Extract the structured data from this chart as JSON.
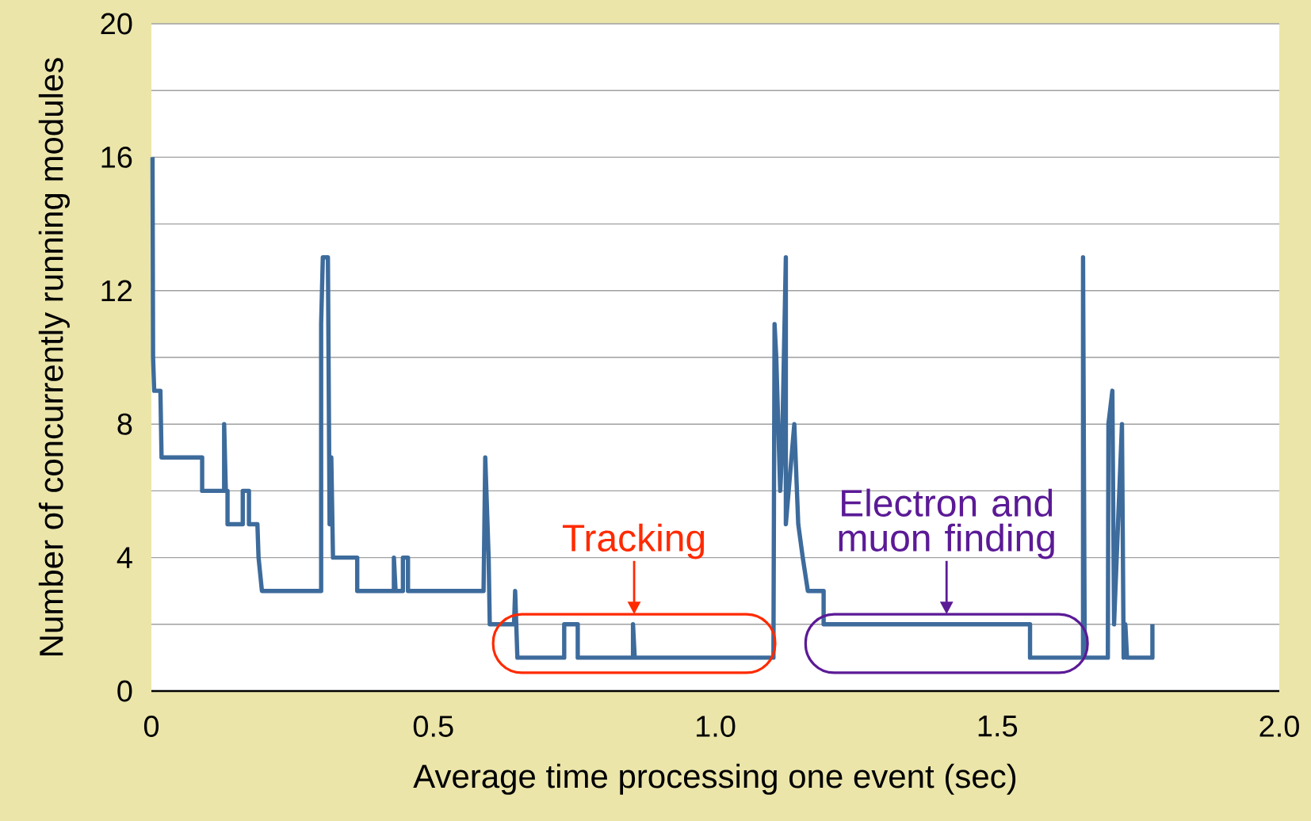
{
  "chart_data": {
    "type": "line",
    "xlabel": "Average time processing one event (sec)",
    "ylabel": "Number of concurrently running modules",
    "xlim": [
      0,
      2
    ],
    "ylim": [
      0,
      20
    ],
    "xticks": [
      0,
      0.5,
      {
        "value": 1,
        "label": "1.0"
      },
      1.5,
      {
        "value": 2,
        "label": "2.0"
      }
    ],
    "yticks": [
      0,
      {
        "value": 2,
        "label": null
      },
      4,
      {
        "value": 6,
        "label": null
      },
      8,
      {
        "value": 10,
        "label": null
      },
      12,
      {
        "value": 14,
        "label": null
      },
      16,
      {
        "value": 18,
        "label": null
      },
      20
    ],
    "grid": "y",
    "series": [
      {
        "color": "#3d6b9c",
        "x": [
          0.002,
          0.003,
          0.005,
          0.016,
          0.018,
          0.09,
          0.09,
          0.129,
          0.129,
          0.132,
          0.135,
          0.135,
          0.162,
          0.162,
          0.173,
          0.173,
          0.188,
          0.19,
          0.196,
          0.301,
          0.301,
          0.304,
          0.313,
          0.316,
          0.319,
          0.322,
          0.365,
          0.365,
          0.43,
          0.43,
          0.433,
          0.446,
          0.446,
          0.455,
          0.455,
          0.589,
          0.592,
          0.598,
          0.6,
          0.643,
          0.645,
          0.649,
          0.732,
          0.732,
          0.756,
          0.756,
          0.854,
          0.854,
          0.857,
          1.103,
          1.105,
          1.108,
          1.115,
          1.118,
          1.125,
          1.125,
          1.14,
          1.147,
          1.155,
          1.164,
          1.192,
          1.192,
          1.558,
          1.558,
          1.652,
          1.652,
          1.655,
          1.696,
          1.697,
          1.704,
          1.707,
          1.721,
          1.724,
          1.727,
          1.73,
          1.775,
          1.775
        ],
        "values": [
          16,
          10,
          9,
          9,
          7,
          7,
          6,
          6,
          8,
          6,
          6,
          5,
          5,
          6,
          6,
          5,
          5,
          4,
          3,
          3,
          11,
          13,
          13,
          5,
          7,
          4,
          4,
          3,
          3,
          4,
          3,
          3,
          4,
          4,
          3,
          3,
          7,
          4,
          2,
          2,
          3,
          1,
          1,
          2,
          2,
          1,
          1,
          2,
          1,
          1,
          11,
          10,
          6,
          7,
          13,
          5,
          8,
          5,
          4,
          3,
          3,
          2,
          2,
          1,
          1,
          13,
          1,
          1,
          8,
          9,
          2,
          8,
          1,
          2,
          1,
          1,
          2
        ]
      }
    ],
    "annotations": [
      "Tracking",
      "Electron and muon finding"
    ]
  }
}
